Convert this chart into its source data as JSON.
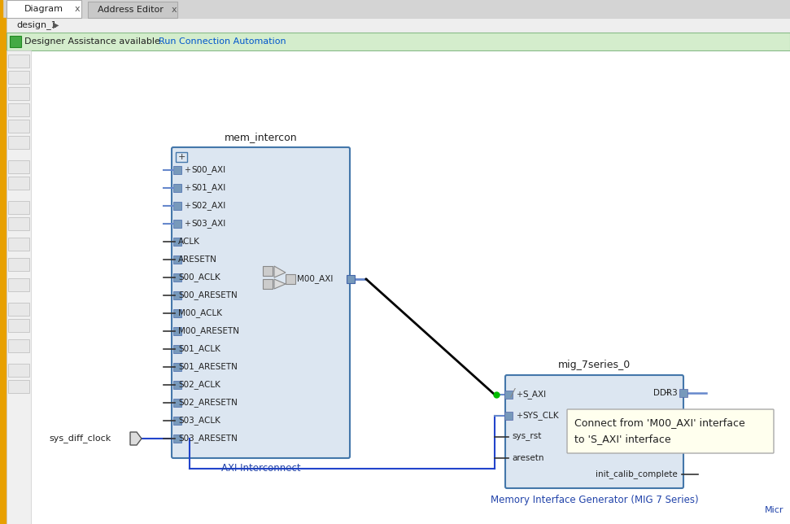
{
  "bg_color": "#f0f0f0",
  "orange_bar_color": "#e8a000",
  "canvas_bg": "#ffffff",
  "block_fill": "#dce6f1",
  "block_border": "#4477aa",
  "figsize": [
    9.71,
    6.44
  ],
  "dpi": 100,
  "mem_intercon_title": "mem_intercon",
  "mem_intercon_subtitle": "AXI Interconnect",
  "mig_title": "mig_7series_0",
  "mig_subtitle": "Memory Interface Generator (MIG 7 Series)",
  "sys_diff_clock_label": "sys_diff_clock",
  "tooltip_text1": "Connect from 'M00_AXI' interface",
  "tooltip_text2": "to 'S_AXI' interface",
  "hint_text": "Designer Assistance available.",
  "hint_link": "Run Connection Automation",
  "tab1": "Diagram",
  "tab2": "Address Editor",
  "breadcrumb": "design_1",
  "micr_text": "Micr"
}
